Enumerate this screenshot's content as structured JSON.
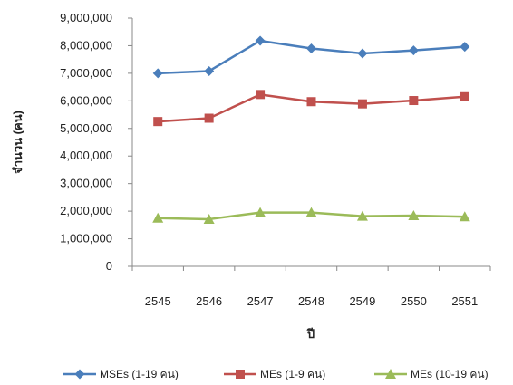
{
  "chart_data": {
    "type": "line",
    "title": "",
    "xlabel": "ปี",
    "ylabel": "จำนวน (คน)",
    "categories": [
      "2545",
      "2546",
      "2547",
      "2548",
      "2549",
      "2550",
      "2551"
    ],
    "ylim": [
      0,
      9000000
    ],
    "yticks": [
      0,
      1000000,
      2000000,
      3000000,
      4000000,
      5000000,
      6000000,
      7000000,
      8000000,
      9000000
    ],
    "ytick_labels": [
      "0",
      "1,000,000",
      "2,000,000",
      "3,000,000",
      "4,000,000",
      "5,000,000",
      "6,000,000",
      "7,000,000",
      "8,000,000",
      "9,000,000"
    ],
    "grid": false,
    "legend_position": "bottom",
    "series": [
      {
        "name": "MSEs (1-19 คน)",
        "color": "#4a7ebb",
        "marker": "diamond",
        "values": [
          7000000,
          7080000,
          8180000,
          7900000,
          7720000,
          7830000,
          7960000
        ]
      },
      {
        "name": "MEs (1-9 คน)",
        "color": "#c0504d",
        "marker": "square",
        "values": [
          5250000,
          5370000,
          6230000,
          5970000,
          5890000,
          6010000,
          6150000
        ]
      },
      {
        "name": "MEs (10-19 คน)",
        "color": "#9bbb59",
        "marker": "triangle",
        "values": [
          1750000,
          1710000,
          1950000,
          1950000,
          1820000,
          1840000,
          1800000
        ]
      }
    ]
  }
}
